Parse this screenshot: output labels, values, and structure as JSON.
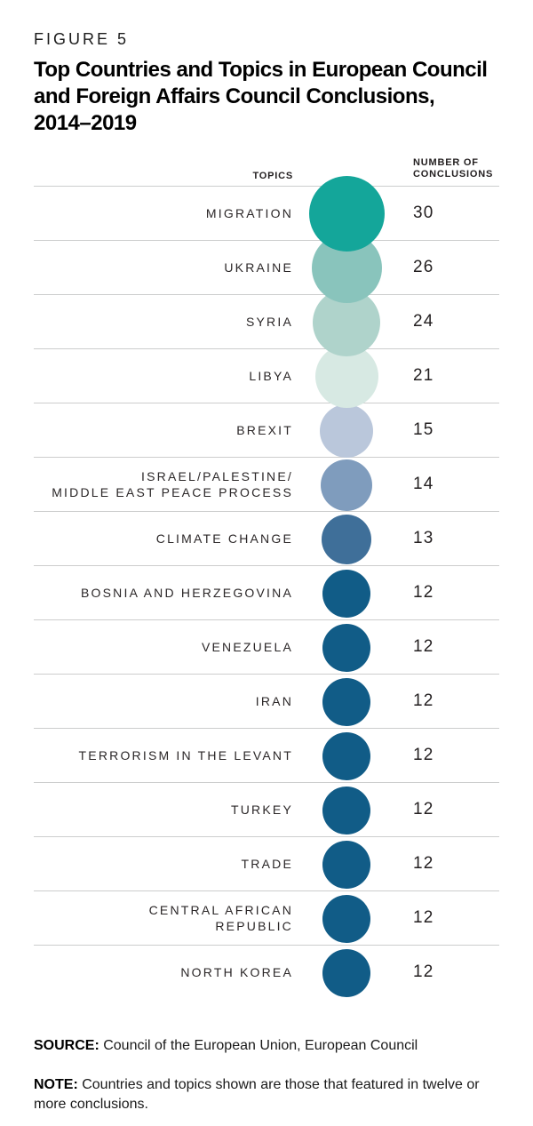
{
  "figure": {
    "kicker": "FIGURE 5",
    "title_lines": [
      "Top Countries and Topics in European Council",
      "and Foreign Affairs Council Conclusions,",
      "2014–2019"
    ]
  },
  "table_headers": {
    "topics": "TOPICS",
    "value": "NUMBER OF\nCONCLUSIONS"
  },
  "chart_data": {
    "type": "bubble",
    "title": "Top Countries and Topics in European Council and Foreign Affairs Council Conclusions, 2014–2019",
    "value_label": "Number of Conclusions",
    "sizing": "circle area proportional to value",
    "legend_position": "none",
    "categories": [
      "Migration",
      "Ukraine",
      "Syria",
      "Libya",
      "Brexit",
      "Israel/Palestine/Middle East Peace Process",
      "Climate Change",
      "Bosnia and Herzegovina",
      "Venezuela",
      "Iran",
      "Terrorism in the Levant",
      "Turkey",
      "Trade",
      "Central African Republic",
      "North Korea"
    ],
    "values": [
      30,
      26,
      24,
      21,
      15,
      14,
      13,
      12,
      12,
      12,
      12,
      12,
      12,
      12,
      12
    ],
    "rows": [
      {
        "label_text": "MIGRATION",
        "value": 30,
        "color": "#14A69A",
        "diameter": 85
      },
      {
        "label_text": "UKRAINE",
        "value": 26,
        "color": "#89C4BC",
        "diameter": 79
      },
      {
        "label_text": "SYRIA",
        "value": 24,
        "color": "#AFD3CB",
        "diameter": 76
      },
      {
        "label_text": "LIBYA",
        "value": 21,
        "color": "#D7E9E3",
        "diameter": 71
      },
      {
        "label_text": "BREXIT",
        "value": 15,
        "color": "#BAC7DB",
        "diameter": 60
      },
      {
        "label_text": "ISRAEL/PALESTINE/\nMIDDLE EAST PEACE PROCESS",
        "value": 14,
        "color": "#7F9CBD",
        "diameter": 58
      },
      {
        "label_text": "CLIMATE CHANGE",
        "value": 13,
        "color": "#3F6F99",
        "diameter": 56
      },
      {
        "label_text": "BOSNIA AND HERZEGOVINA",
        "value": 12,
        "color": "#115C87",
        "diameter": 54
      },
      {
        "label_text": "VENEZUELA",
        "value": 12,
        "color": "#115C87",
        "diameter": 54
      },
      {
        "label_text": "IRAN",
        "value": 12,
        "color": "#115C87",
        "diameter": 54
      },
      {
        "label_text": "TERRORISM IN THE LEVANT",
        "value": 12,
        "color": "#115C87",
        "diameter": 54
      },
      {
        "label_text": "TURKEY",
        "value": 12,
        "color": "#115C87",
        "diameter": 54
      },
      {
        "label_text": "TRADE",
        "value": 12,
        "color": "#115C87",
        "diameter": 54
      },
      {
        "label_text": "CENTRAL AFRICAN\nREPUBLIC",
        "value": 12,
        "color": "#115C87",
        "diameter": 54
      },
      {
        "label_text": "NORTH KOREA",
        "value": 12,
        "color": "#115C87",
        "diameter": 54
      }
    ]
  },
  "source": {
    "label": "SOURCE:",
    "text": " Council of the European Union, European Council"
  },
  "note": {
    "label": "NOTE:",
    "line1": " Countries and topics shown are those that featured in twelve or",
    "line2": "more conclusions."
  }
}
